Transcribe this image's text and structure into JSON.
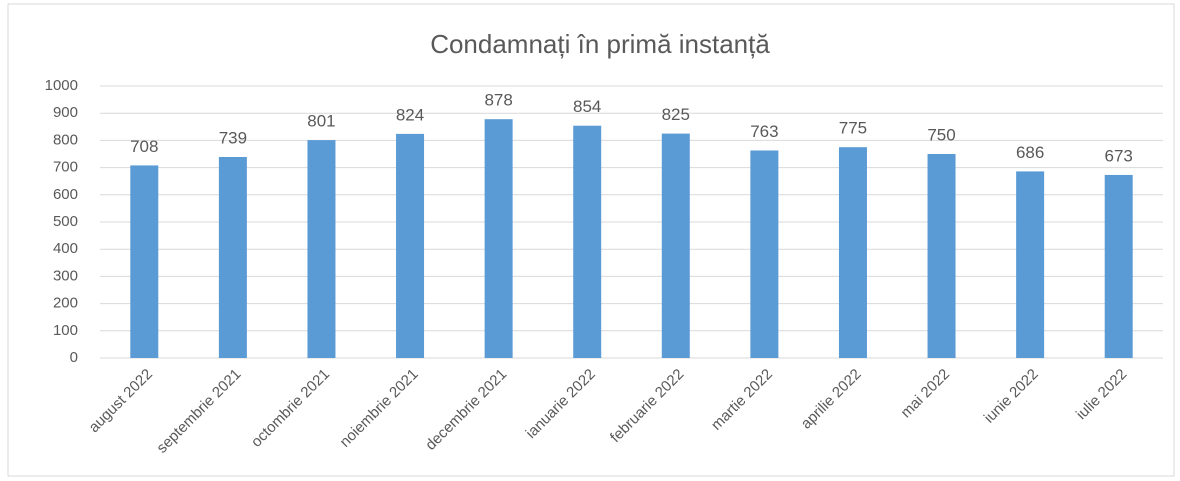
{
  "chart_data": {
    "type": "bar",
    "title": "Condamnați în primă instanță",
    "categories": [
      "august 2022",
      "septembrie 2021",
      "octombrie 2021",
      "noiembrie 2021",
      "decembrie 2021",
      "ianuarie 2022",
      "februarie 2022",
      "martie 2022",
      "aprilie 2022",
      "mai 2022",
      "iunie 2022",
      "iulie 2022"
    ],
    "values": [
      708,
      739,
      801,
      824,
      878,
      854,
      825,
      763,
      775,
      750,
      686,
      673
    ],
    "color": "#5b9bd5",
    "ylim": [
      0,
      1000
    ],
    "yticks": [
      0,
      100,
      200,
      300,
      400,
      500,
      600,
      700,
      800,
      900,
      1000
    ],
    "grid": true
  }
}
